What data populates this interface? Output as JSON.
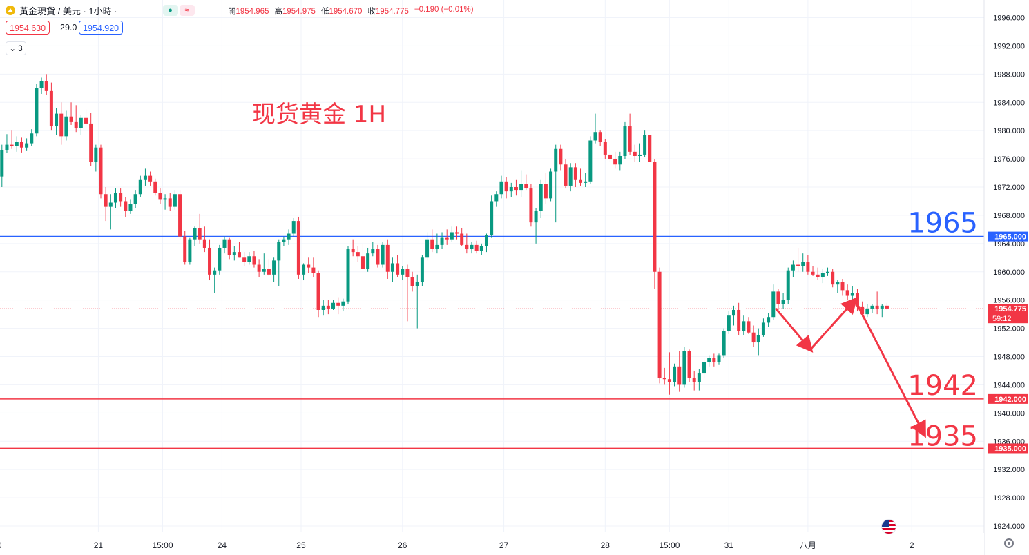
{
  "header": {
    "title": "黃金現貨 / 美元 · 1小時 ·",
    "ohlc": [
      {
        "k": "開",
        "v": "1954.965"
      },
      {
        "k": "高",
        "v": "1954.975"
      },
      {
        "k": "低",
        "v": "1954.670"
      },
      {
        "k": "收",
        "v": "1954.775"
      },
      {
        "k": "",
        "v": "−0.190 (−0.01%)"
      }
    ],
    "bid": "1954.630",
    "spread": "29.0",
    "ask": "1954.920",
    "collapse_label": "3"
  },
  "colors": {
    "up": "#089981",
    "down": "#f23645",
    "blue_line": "#2962ff",
    "red_line": "#f23645",
    "grid": "#f0f3fa",
    "annotation": "#f23645"
  },
  "chart_data": {
    "type": "candlestick",
    "title": "现货黄金 1H",
    "y_axis": {
      "ticks": [
        "1996.000",
        "1992.000",
        "1988.000",
        "1984.000",
        "1980.000",
        "1976.000",
        "1972.000",
        "1968.000",
        "1964.000",
        "1960.000",
        "1956.000",
        "1952.000",
        "1948.000",
        "1944.000",
        "1940.000",
        "1936.000",
        "1932.000",
        "1928.000",
        "1924.000"
      ],
      "range": [
        1922.5,
        1998.0
      ]
    },
    "x_axis": {
      "labels": [
        {
          "label": "0",
          "bar": -0.5
        },
        {
          "label": "21",
          "bar": 19.5
        },
        {
          "label": "15:00",
          "bar": 32.5
        },
        {
          "label": "24",
          "bar": 44.5
        },
        {
          "label": "25",
          "bar": 60.5
        },
        {
          "label": "26",
          "bar": 81
        },
        {
          "label": "27",
          "bar": 101.5
        },
        {
          "label": "28",
          "bar": 122
        },
        {
          "label": "15:00",
          "bar": 135
        },
        {
          "label": "31",
          "bar": 147
        },
        {
          "label": "八月",
          "bar": 163
        },
        {
          "label": "2",
          "bar": 184
        }
      ]
    },
    "levels": [
      {
        "value": 1965.0,
        "label": "1965.000",
        "big_label": "1965",
        "color": "#2962ff"
      },
      {
        "value": 1942.0,
        "label": "1942.000",
        "big_label": "1942",
        "color": "#f23645"
      },
      {
        "value": 1935.0,
        "label": "1935.000",
        "big_label": "1935",
        "color": "#f23645"
      }
    ],
    "current": {
      "value": 1954.775,
      "label": "1954.775",
      "countdown": "59:12"
    },
    "projection": [
      {
        "bar": 156.5,
        "y": 1954.8
      },
      {
        "bar": 163.5,
        "y": 1949.0
      },
      {
        "bar": 172.5,
        "y": 1956.0
      },
      {
        "bar": 186.5,
        "y": 1937.0
      }
    ],
    "candles": [
      [
        1973.5,
        1978.0,
        1972.0,
        1977.2
      ],
      [
        1977.2,
        1979.5,
        1976.8,
        1978.0
      ],
      [
        1978.0,
        1980.0,
        1977.4,
        1977.8
      ],
      [
        1977.8,
        1979.2,
        1977.0,
        1978.4
      ],
      [
        1978.4,
        1979.0,
        1976.9,
        1977.6
      ],
      [
        1977.6,
        1978.9,
        1977.1,
        1978.2
      ],
      [
        1978.2,
        1980.2,
        1977.8,
        1979.6
      ],
      [
        1979.6,
        1986.6,
        1979.2,
        1986.0
      ],
      [
        1986.0,
        1987.5,
        1985.2,
        1987.0
      ],
      [
        1987.0,
        1988.0,
        1985.0,
        1985.6
      ],
      [
        1985.6,
        1986.8,
        1980.0,
        1980.6
      ],
      [
        1980.6,
        1983.2,
        1979.4,
        1982.4
      ],
      [
        1982.4,
        1984.0,
        1978.0,
        1979.2
      ],
      [
        1979.2,
        1982.8,
        1978.6,
        1982.0
      ],
      [
        1982.0,
        1984.0,
        1980.8,
        1981.2
      ],
      [
        1981.2,
        1983.6,
        1979.8,
        1980.4
      ],
      [
        1980.4,
        1982.2,
        1979.4,
        1981.8
      ],
      [
        1981.8,
        1983.0,
        1980.6,
        1981.0
      ],
      [
        1981.0,
        1982.5,
        1975.0,
        1975.6
      ],
      [
        1975.6,
        1978.0,
        1974.2,
        1977.6
      ],
      [
        1977.6,
        1978.0,
        1970.4,
        1971.0
      ],
      [
        1971.0,
        1972.0,
        1967.2,
        1969.2
      ],
      [
        1969.2,
        1971.0,
        1966.0,
        1969.8
      ],
      [
        1969.8,
        1971.8,
        1969.0,
        1971.2
      ],
      [
        1971.2,
        1971.8,
        1969.2,
        1970.0
      ],
      [
        1970.0,
        1970.6,
        1967.8,
        1968.6
      ],
      [
        1968.6,
        1970.2,
        1968.2,
        1969.6
      ],
      [
        1969.6,
        1971.6,
        1969.0,
        1971.0
      ],
      [
        1971.0,
        1973.6,
        1970.6,
        1973.0
      ],
      [
        1973.0,
        1974.6,
        1972.2,
        1973.6
      ],
      [
        1973.6,
        1974.2,
        1972.2,
        1972.8
      ],
      [
        1972.8,
        1973.2,
        1970.8,
        1971.2
      ],
      [
        1971.2,
        1971.8,
        1969.6,
        1970.2
      ],
      [
        1970.2,
        1971.0,
        1968.8,
        1970.4
      ],
      [
        1970.4,
        1971.2,
        1968.6,
        1969.2
      ],
      [
        1969.2,
        1971.6,
        1968.8,
        1971.0
      ],
      [
        1971.0,
        1971.6,
        1964.6,
        1965.0
      ],
      [
        1965.0,
        1965.8,
        1961.0,
        1961.4
      ],
      [
        1961.4,
        1964.8,
        1961.0,
        1964.6
      ],
      [
        1964.6,
        1966.4,
        1963.6,
        1966.2
      ],
      [
        1966.2,
        1968.2,
        1964.0,
        1964.6
      ],
      [
        1964.6,
        1966.4,
        1962.8,
        1963.4
      ],
      [
        1963.4,
        1964.6,
        1958.8,
        1959.6
      ],
      [
        1959.6,
        1960.6,
        1957.0,
        1960.2
      ],
      [
        1960.2,
        1963.8,
        1959.6,
        1963.4
      ],
      [
        1963.4,
        1965.0,
        1962.6,
        1964.6
      ],
      [
        1964.6,
        1964.8,
        1961.8,
        1962.4
      ],
      [
        1962.4,
        1963.6,
        1961.6,
        1962.8
      ],
      [
        1962.8,
        1964.2,
        1962.0,
        1962.0
      ],
      [
        1962.0,
        1962.8,
        1960.8,
        1961.4
      ],
      [
        1961.4,
        1962.8,
        1961.0,
        1962.2
      ],
      [
        1962.2,
        1963.0,
        1960.6,
        1961.0
      ],
      [
        1961.0,
        1961.8,
        1959.2,
        1960.0
      ],
      [
        1960.0,
        1962.6,
        1959.6,
        1960.4
      ],
      [
        1960.4,
        1961.8,
        1959.4,
        1959.6
      ],
      [
        1959.6,
        1962.0,
        1958.6,
        1961.6
      ],
      [
        1961.6,
        1964.6,
        1958.0,
        1964.2
      ],
      [
        1964.2,
        1965.0,
        1963.6,
        1964.6
      ],
      [
        1964.6,
        1966.0,
        1963.8,
        1965.4
      ],
      [
        1965.4,
        1967.6,
        1965.0,
        1967.2
      ],
      [
        1967.2,
        1967.8,
        1959.0,
        1959.6
      ],
      [
        1959.6,
        1961.2,
        1958.8,
        1961.0
      ],
      [
        1961.0,
        1962.0,
        1959.8,
        1960.6
      ],
      [
        1960.6,
        1962.0,
        1959.2,
        1959.8
      ],
      [
        1959.8,
        1960.2,
        1953.6,
        1954.6
      ],
      [
        1954.6,
        1956.0,
        1953.8,
        1955.2
      ],
      [
        1955.2,
        1956.0,
        1954.0,
        1954.8
      ],
      [
        1954.8,
        1956.0,
        1954.6,
        1955.6
      ],
      [
        1955.6,
        1956.4,
        1954.0,
        1955.2
      ],
      [
        1955.2,
        1956.2,
        1954.4,
        1955.8
      ],
      [
        1955.8,
        1963.6,
        1955.4,
        1963.2
      ],
      [
        1963.2,
        1964.6,
        1962.2,
        1962.8
      ],
      [
        1962.8,
        1963.6,
        1961.4,
        1962.2
      ],
      [
        1962.2,
        1964.0,
        1960.8,
        1960.4
      ],
      [
        1960.4,
        1963.4,
        1960.0,
        1962.6
      ],
      [
        1962.6,
        1964.2,
        1962.2,
        1963.2
      ],
      [
        1963.2,
        1963.8,
        1960.6,
        1961.0
      ],
      [
        1961.0,
        1964.2,
        1960.6,
        1963.8
      ],
      [
        1963.8,
        1964.6,
        1959.0,
        1960.0
      ],
      [
        1960.0,
        1962.0,
        1958.6,
        1961.2
      ],
      [
        1961.2,
        1962.4,
        1959.2,
        1959.6
      ],
      [
        1959.6,
        1960.8,
        1958.8,
        1960.4
      ],
      [
        1960.4,
        1961.0,
        1953.0,
        1959.2
      ],
      [
        1959.2,
        1960.0,
        1957.2,
        1958.0
      ],
      [
        1958.0,
        1959.6,
        1952.0,
        1958.6
      ],
      [
        1958.6,
        1962.4,
        1958.0,
        1962.0
      ],
      [
        1962.0,
        1965.6,
        1961.6,
        1964.6
      ],
      [
        1964.6,
        1966.0,
        1962.8,
        1963.2
      ],
      [
        1963.2,
        1965.4,
        1962.6,
        1963.8
      ],
      [
        1963.8,
        1965.6,
        1963.2,
        1964.8
      ],
      [
        1964.8,
        1966.0,
        1963.8,
        1964.6
      ],
      [
        1964.6,
        1966.4,
        1964.2,
        1965.6
      ],
      [
        1965.6,
        1966.4,
        1964.6,
        1965.4
      ],
      [
        1965.4,
        1966.2,
        1963.6,
        1963.8
      ],
      [
        1963.8,
        1965.4,
        1962.6,
        1963.2
      ],
      [
        1963.2,
        1964.2,
        1962.6,
        1963.8
      ],
      [
        1963.8,
        1964.4,
        1962.6,
        1963.0
      ],
      [
        1963.0,
        1964.0,
        1962.4,
        1963.6
      ],
      [
        1963.6,
        1965.4,
        1962.8,
        1965.2
      ],
      [
        1965.2,
        1970.8,
        1964.8,
        1970.0
      ],
      [
        1970.0,
        1971.4,
        1969.2,
        1971.0
      ],
      [
        1971.0,
        1973.6,
        1970.4,
        1972.8
      ],
      [
        1972.8,
        1973.4,
        1970.4,
        1971.4
      ],
      [
        1971.4,
        1972.6,
        1970.6,
        1972.0
      ],
      [
        1972.0,
        1973.0,
        1970.8,
        1971.6
      ],
      [
        1971.6,
        1974.4,
        1970.6,
        1972.4
      ],
      [
        1972.4,
        1973.8,
        1971.6,
        1971.8
      ],
      [
        1971.8,
        1972.4,
        1966.4,
        1967.0
      ],
      [
        1967.0,
        1969.0,
        1964.0,
        1968.6
      ],
      [
        1968.6,
        1973.0,
        1967.6,
        1972.4
      ],
      [
        1972.4,
        1974.0,
        1969.6,
        1970.4
      ],
      [
        1970.4,
        1974.6,
        1970.0,
        1974.2
      ],
      [
        1974.2,
        1978.0,
        1967.0,
        1977.4
      ],
      [
        1977.4,
        1978.0,
        1974.4,
        1975.2
      ],
      [
        1975.2,
        1976.0,
        1971.8,
        1972.2
      ],
      [
        1972.2,
        1975.4,
        1971.4,
        1974.8
      ],
      [
        1974.8,
        1975.4,
        1972.0,
        1973.0
      ],
      [
        1973.0,
        1974.6,
        1972.2,
        1972.6
      ],
      [
        1972.6,
        1974.0,
        1972.0,
        1972.8
      ],
      [
        1972.8,
        1979.2,
        1972.4,
        1978.6
      ],
      [
        1978.6,
        1982.4,
        1978.2,
        1979.8
      ],
      [
        1979.8,
        1980.0,
        1977.8,
        1978.4
      ],
      [
        1978.4,
        1978.8,
        1976.0,
        1976.6
      ],
      [
        1976.6,
        1978.0,
        1975.6,
        1976.0
      ],
      [
        1976.0,
        1977.0,
        1974.6,
        1975.2
      ],
      [
        1975.2,
        1977.0,
        1974.4,
        1976.4
      ],
      [
        1976.4,
        1981.2,
        1976.0,
        1980.6
      ],
      [
        1980.6,
        1982.4,
        1976.6,
        1977.0
      ],
      [
        1977.0,
        1978.0,
        1975.6,
        1976.4
      ],
      [
        1976.4,
        1978.2,
        1975.6,
        1976.6
      ],
      [
        1976.6,
        1980.0,
        1976.2,
        1979.4
      ],
      [
        1979.4,
        1979.4,
        1975.6,
        1975.6
      ],
      [
        1975.6,
        1976.0,
        1957.6,
        1960.0
      ],
      [
        1960.0,
        1960.6,
        1944.2,
        1945.0
      ],
      [
        1945.0,
        1946.4,
        1944.0,
        1944.8
      ],
      [
        1944.8,
        1948.6,
        1942.6,
        1944.4
      ],
      [
        1944.4,
        1947.0,
        1943.8,
        1946.6
      ],
      [
        1946.6,
        1948.8,
        1943.0,
        1944.0
      ],
      [
        1944.0,
        1949.4,
        1943.6,
        1948.8
      ],
      [
        1948.8,
        1949.0,
        1944.4,
        1945.0
      ],
      [
        1945.0,
        1946.0,
        1943.2,
        1944.4
      ],
      [
        1944.4,
        1946.2,
        1943.2,
        1945.6
      ],
      [
        1945.6,
        1947.8,
        1945.0,
        1947.2
      ],
      [
        1947.2,
        1948.2,
        1946.6,
        1947.8
      ],
      [
        1947.8,
        1948.4,
        1946.6,
        1947.2
      ],
      [
        1947.2,
        1948.4,
        1946.8,
        1948.2
      ],
      [
        1948.2,
        1952.0,
        1947.8,
        1951.6
      ],
      [
        1951.6,
        1954.4,
        1951.2,
        1953.8
      ],
      [
        1953.8,
        1955.2,
        1952.4,
        1954.6
      ],
      [
        1954.6,
        1955.6,
        1951.0,
        1951.6
      ],
      [
        1951.6,
        1953.8,
        1951.0,
        1953.0
      ],
      [
        1953.0,
        1953.6,
        1951.2,
        1951.4
      ],
      [
        1951.4,
        1952.4,
        1949.4,
        1950.0
      ],
      [
        1950.0,
        1952.0,
        1948.2,
        1951.0
      ],
      [
        1951.0,
        1953.4,
        1950.8,
        1952.8
      ],
      [
        1952.8,
        1954.2,
        1952.2,
        1953.6
      ],
      [
        1953.6,
        1958.2,
        1953.2,
        1957.2
      ],
      [
        1957.2,
        1957.6,
        1954.6,
        1955.4
      ],
      [
        1955.4,
        1957.0,
        1954.8,
        1956.0
      ],
      [
        1956.0,
        1960.6,
        1955.4,
        1960.2
      ],
      [
        1960.2,
        1961.6,
        1959.2,
        1961.0
      ],
      [
        1961.0,
        1963.4,
        1960.0,
        1960.8
      ],
      [
        1960.8,
        1962.6,
        1960.0,
        1961.4
      ],
      [
        1961.4,
        1962.4,
        1959.6,
        1960.0
      ],
      [
        1960.0,
        1960.8,
        1959.4,
        1959.6
      ],
      [
        1959.6,
        1960.6,
        1958.8,
        1959.2
      ],
      [
        1959.2,
        1960.4,
        1958.4,
        1959.8
      ],
      [
        1959.8,
        1960.6,
        1959.4,
        1960.0
      ],
      [
        1960.0,
        1960.4,
        1957.8,
        1958.2
      ],
      [
        1958.2,
        1958.8,
        1957.0,
        1958.6
      ],
      [
        1958.6,
        1959.0,
        1956.6,
        1957.4
      ],
      [
        1957.4,
        1958.2,
        1956.0,
        1956.6
      ],
      [
        1956.6,
        1958.0,
        1955.8,
        1957.0
      ],
      [
        1957.0,
        1957.6,
        1954.4,
        1955.0
      ],
      [
        1955.0,
        1955.8,
        1953.6,
        1954.0
      ],
      [
        1954.0,
        1955.4,
        1953.6,
        1954.8
      ],
      [
        1954.8,
        1955.4,
        1954.2,
        1955.2
      ],
      [
        1955.2,
        1957.2,
        1954.0,
        1954.8
      ],
      [
        1954.8,
        1955.4,
        1953.6,
        1955.2
      ],
      [
        1955.2,
        1955.6,
        1954.6,
        1954.8
      ]
    ]
  }
}
